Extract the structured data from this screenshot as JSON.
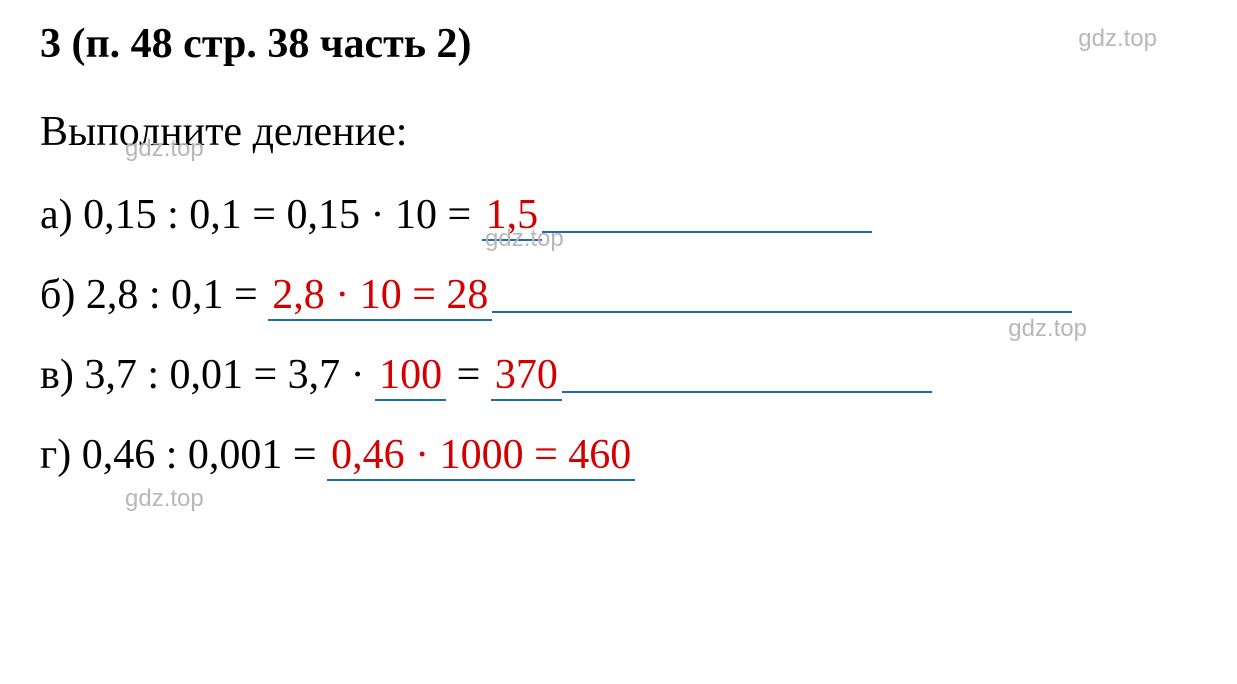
{
  "title": "3 (п. 48 стр. 38 часть 2)",
  "instruction": "Выполните деление:",
  "watermark_text": "gdz.top",
  "colors": {
    "text_black": "#000000",
    "answer_red": "#d40000",
    "underline_blue": "#1a6db3",
    "watermark_gray": "#b8b8b8",
    "background": "#ffffff"
  },
  "typography": {
    "title_fontsize": 42,
    "title_weight": "bold",
    "body_fontsize": 42,
    "watermark_fontsize": 24,
    "font_family": "Times New Roman"
  },
  "problems": {
    "a": {
      "label": "а)",
      "given": "0,15 : 0,1 = 0,15 · 10 = ",
      "answer": "1,5",
      "trailing_width": 330
    },
    "b": {
      "label": "б)",
      "given": "2,8 : 0,1 = ",
      "answer": "2,8 · 10 = 28",
      "trailing_width": 580
    },
    "c": {
      "label": "в)",
      "given_part1": "3,7 : 0,01 = 3,7 · ",
      "answer1": "100",
      "given_part2": " = ",
      "answer2": "370",
      "trailing_width": 370
    },
    "d": {
      "label": "г)",
      "given": "0,46 : 0,001 = ",
      "answer": "0,46 · 1000 = 460",
      "trailing_width": 0
    }
  }
}
